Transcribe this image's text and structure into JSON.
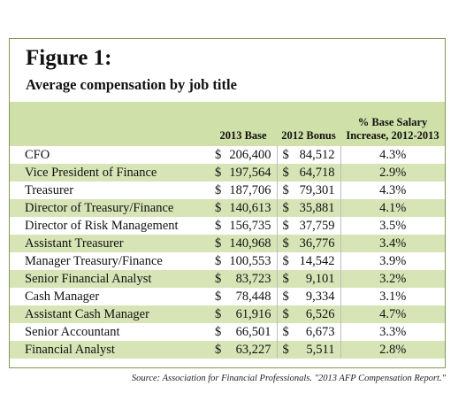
{
  "figure": {
    "title": "Figure 1:",
    "subtitle": "Average compensation by job title"
  },
  "table": {
    "headers": {
      "base": "2013 Base",
      "bonus": "2012 Bonus",
      "pct": "% Base Salary Increase, 2012-2013"
    },
    "currency_symbol": "$",
    "rows": [
      {
        "title": "CFO",
        "base": "206,400",
        "bonus": "84,512",
        "pct": "4.3%"
      },
      {
        "title": "Vice President of Finance",
        "base": "197,564",
        "bonus": "64,718",
        "pct": "2.9%"
      },
      {
        "title": "Treasurer",
        "base": "187,706",
        "bonus": "79,301",
        "pct": "4.3%"
      },
      {
        "title": "Director of Treasury/Finance",
        "base": "140,613",
        "bonus": "35,881",
        "pct": "4.1%"
      },
      {
        "title": "Director of Risk Management",
        "base": "156,735",
        "bonus": "37,759",
        "pct": "3.5%"
      },
      {
        "title": "Assistant Treasurer",
        "base": "140,968",
        "bonus": "36,776",
        "pct": "3.4%"
      },
      {
        "title": "Manager Treasury/Finance",
        "base": "100,553",
        "bonus": "14,542",
        "pct": "3.9%"
      },
      {
        "title": "Senior Financial Analyst",
        "base": "83,723",
        "bonus": "9,101",
        "pct": "3.2%"
      },
      {
        "title": "Cash Manager",
        "base": "78,448",
        "bonus": "9,334",
        "pct": "3.1%"
      },
      {
        "title": "Assistant Cash Manager",
        "base": "61,916",
        "bonus": "6,526",
        "pct": "4.7%"
      },
      {
        "title": "Senior Accountant",
        "base": "66,501",
        "bonus": "6,673",
        "pct": "3.3%"
      },
      {
        "title": "Financial Analyst",
        "base": "63,227",
        "bonus": "5,511",
        "pct": "2.8%"
      }
    ]
  },
  "source": "Source: Association for Financial Professionals. \"2013 AFP Compensation Report.\"",
  "colors": {
    "shaded_row": "#d6e4b6",
    "header_band": "#cfe0a9",
    "frame": "#7f9a52"
  }
}
